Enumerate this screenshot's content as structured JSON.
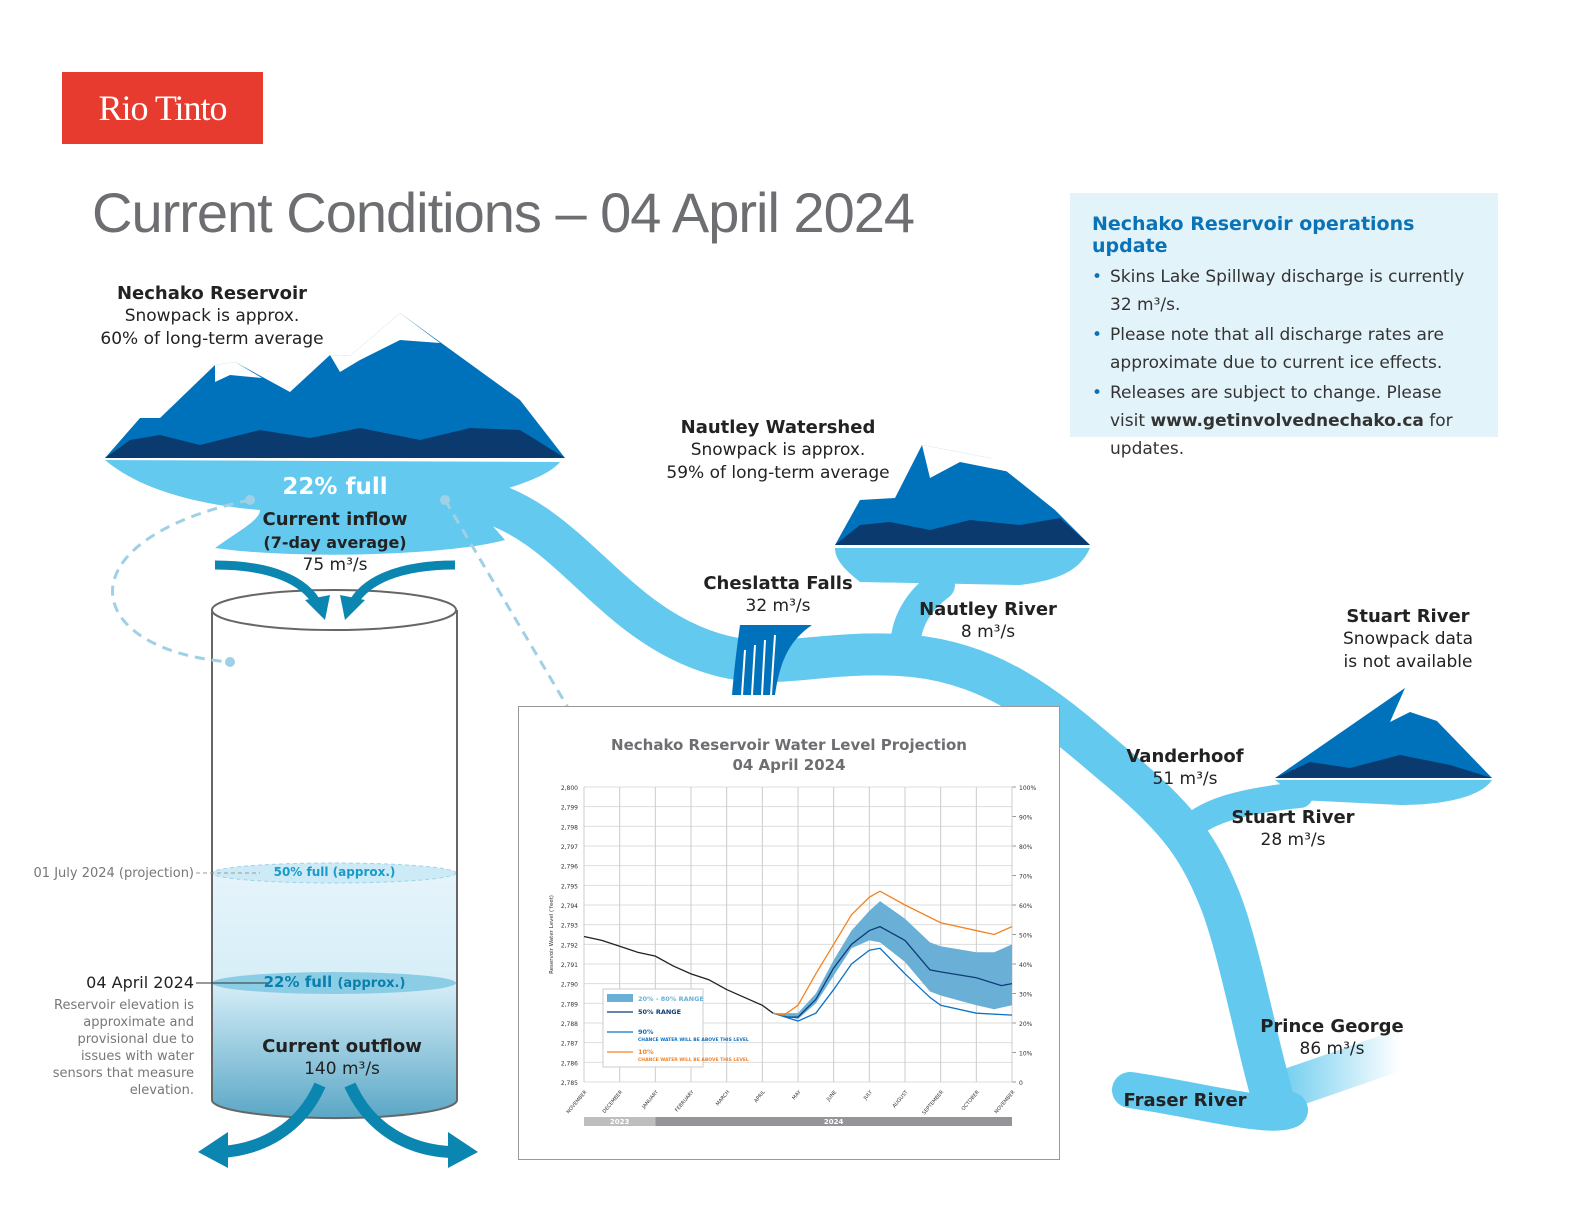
{
  "brand": "Rio Tinto",
  "title": "Current Conditions – 04 April 2024",
  "update": {
    "heading": "Nechako Reservoir operations update",
    "items": [
      "Skins Lake Spillway discharge is currently 32 m³/s.",
      "Please note that all discharge rates are approximate due to current ice effects."
    ],
    "item3_pre": "Releases are subject to change. Please visit ",
    "item3_link": "www.getinvolvednechako.ca",
    "item3_post": " for updates."
  },
  "reservoir": {
    "name": "Nechako Reservoir",
    "line1": "Snowpack is approx.",
    "line2": "60% of long-term average",
    "full": "22% full",
    "inflow_label": "Current inflow",
    "inflow_sub": "(7-day average)",
    "inflow_value": "75 m³/s",
    "outflow_label": "Current outflow",
    "outflow_value": "140 m³/s",
    "projection_label": "01 July 2024 (projection)",
    "projection_level": "50% full (approx.)",
    "current_date": "04 April 2024",
    "current_level": "22% full",
    "current_level_sub": "(approx.)",
    "note": "Reservoir elevation is approximate and provisional due to issues with water sensors that measure elevation.",
    "fill_fraction": 0.22,
    "projection_fraction": 0.5
  },
  "nautley_watershed": {
    "name": "Nautley Watershed",
    "line1": "Snowpack is approx.",
    "line2": "59% of long-term average"
  },
  "cheslatta": {
    "name": "Cheslatta Falls",
    "value": "32 m³/s"
  },
  "nautley_river": {
    "name": "Nautley River",
    "value": "8 m³/s"
  },
  "stuart_watershed": {
    "name": "Stuart River",
    "line1": "Snowpack data",
    "line2": "is not available"
  },
  "vanderhoof": {
    "name": "Vanderhoof",
    "value": "51 m³/s"
  },
  "stuart_river": {
    "name": "Stuart River",
    "value": "28 m³/s"
  },
  "prince_george": {
    "name": "Prince George",
    "value": "86 m³/s"
  },
  "fraser": {
    "name": "Fraser River"
  },
  "colors": {
    "brand": "#e83b2f",
    "river": "#63c9ee",
    "mountain_dark": "#0a3a6e",
    "mountain": "#0072bc",
    "accent": "#0a73b7"
  },
  "chart_data": {
    "type": "line",
    "title": "Nechako Reservoir Water Level Projection",
    "subtitle": "04 April 2024",
    "ylabel": "Reservoir Water Level (‘feet)",
    "ylim": [
      2785,
      2800
    ],
    "yticks": [
      "2,785",
      "2,786",
      "2,787",
      "2,788",
      "2,789",
      "2,790",
      "2,791",
      "2,792",
      "2,793",
      "2,794",
      "2,795",
      "2,796",
      "2,797",
      "2,798",
      "2,799",
      "2,800"
    ],
    "y2ticks": [
      "0",
      "10%",
      "20%",
      "30%",
      "40%",
      "50%",
      "60%",
      "70%",
      "80%",
      "90%",
      "100%"
    ],
    "categories": [
      "NOVEMBER",
      "DECEMBER",
      "JANUARY",
      "FEBRUARY",
      "MARCH",
      "APRIL",
      "MAY",
      "JUNE",
      "JULY",
      "AUGUST",
      "SEPTEMBER",
      "OCTOBER",
      "NOVEMBER"
    ],
    "years": [
      "2023",
      "2024"
    ],
    "grid": true,
    "legend": "bottom-left",
    "historical": {
      "x": [
        0,
        0.5,
        1,
        1.5,
        2,
        2.5,
        3,
        3.5,
        4,
        4.5,
        5,
        5.3
      ],
      "y": [
        2792.4,
        2792.2,
        2791.9,
        2791.6,
        2791.4,
        2790.9,
        2790.5,
        2790.2,
        2789.7,
        2789.3,
        2788.9,
        2788.5
      ]
    },
    "band": {
      "name": "20% - 80% RANGE",
      "x": [
        5.3,
        6,
        6.5,
        7,
        7.5,
        8,
        8.3,
        9,
        9.7,
        10,
        11,
        11.5,
        12
      ],
      "low": [
        2788.5,
        2788.2,
        2789.0,
        2790.4,
        2791.8,
        2792.2,
        2792.1,
        2791.1,
        2789.6,
        2789.4,
        2788.9,
        2788.7,
        2788.9
      ],
      "high": [
        2788.5,
        2788.5,
        2789.5,
        2791.2,
        2792.7,
        2793.7,
        2794.2,
        2793.3,
        2792.1,
        2791.9,
        2791.6,
        2791.6,
        2792.0
      ]
    },
    "series": [
      {
        "name": "50% RANGE",
        "color": "#0d3c78",
        "x": [
          5.3,
          5.7,
          6,
          6.5,
          7,
          7.5,
          8,
          8.3,
          9,
          9.7,
          10,
          11,
          11.7,
          12
        ],
        "y": [
          2788.5,
          2788.3,
          2788.3,
          2789.2,
          2790.8,
          2792.0,
          2792.7,
          2792.9,
          2792.2,
          2790.7,
          2790.6,
          2790.3,
          2789.9,
          2790.0
        ]
      },
      {
        "name": "90%",
        "desc": "CHANCE WATER WILL BE ABOVE THIS LEVEL",
        "color": "#0a73c7",
        "x": [
          5.3,
          6,
          6.5,
          7,
          7.5,
          8,
          8.3,
          9,
          9.7,
          10,
          11,
          12
        ],
        "y": [
          2788.5,
          2788.1,
          2788.5,
          2789.7,
          2791.0,
          2791.7,
          2791.8,
          2790.5,
          2789.3,
          2788.9,
          2788.5,
          2788.4
        ]
      },
      {
        "name": "10%",
        "desc": "CHANCE WATER WILL BE ABOVE THIS LEVEL",
        "color": "#f58220",
        "x": [
          5.3,
          5.6,
          6,
          6.5,
          7,
          7.5,
          8,
          8.3,
          9,
          10,
          11,
          11.5,
          12
        ],
        "y": [
          2788.5,
          2788.4,
          2788.9,
          2790.5,
          2792.0,
          2793.5,
          2794.4,
          2794.7,
          2794.0,
          2793.1,
          2792.7,
          2792.5,
          2792.9
        ]
      }
    ]
  }
}
